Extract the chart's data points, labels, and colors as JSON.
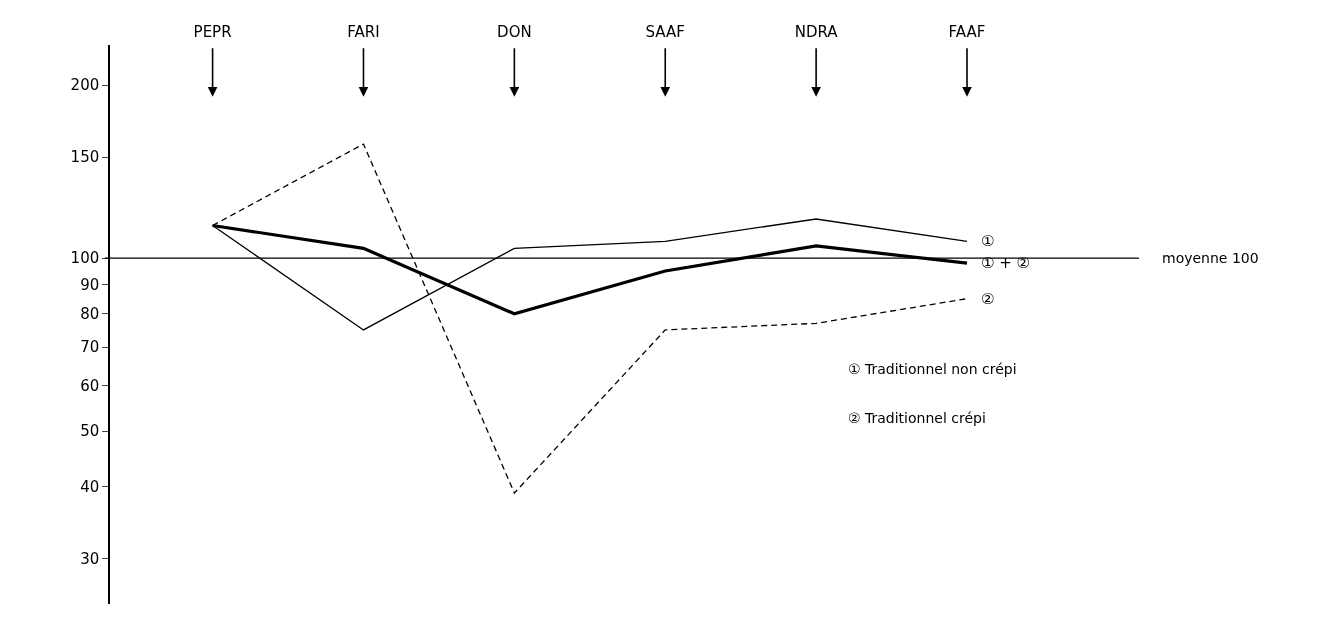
{
  "chart_data": {
    "type": "line",
    "categories": [
      "PEPR",
      "FARI",
      "DON",
      "SAAF",
      "NDRA",
      "FAAF"
    ],
    "series": [
      {
        "name": "①",
        "color": "#000000",
        "line_style": "solid",
        "values": [
          114,
          75,
          104,
          107,
          117,
          107
        ]
      },
      {
        "name": "②",
        "color": "#000000",
        "line_style": "dashed",
        "values": [
          114,
          158,
          39,
          75,
          77,
          85
        ]
      },
      {
        "name": "① + ②",
        "color": "#000000",
        "line_style": "solid",
        "values": [
          114,
          104,
          80,
          95,
          105,
          98
        ]
      }
    ],
    "log": true,
    "ylim": [
      25,
      235
    ],
    "yticks": [
      30,
      40,
      50,
      60,
      70,
      80,
      90,
      100,
      150,
      200
    ],
    "ref_lines": [
      {
        "axis": "y",
        "value": 100,
        "label": "moyenne 100",
        "color": "#000000"
      }
    ],
    "annotations": [
      "① Traditionnel non crépi",
      "② Traditionnel crépi"
    ],
    "legend": false,
    "marker": "none"
  }
}
